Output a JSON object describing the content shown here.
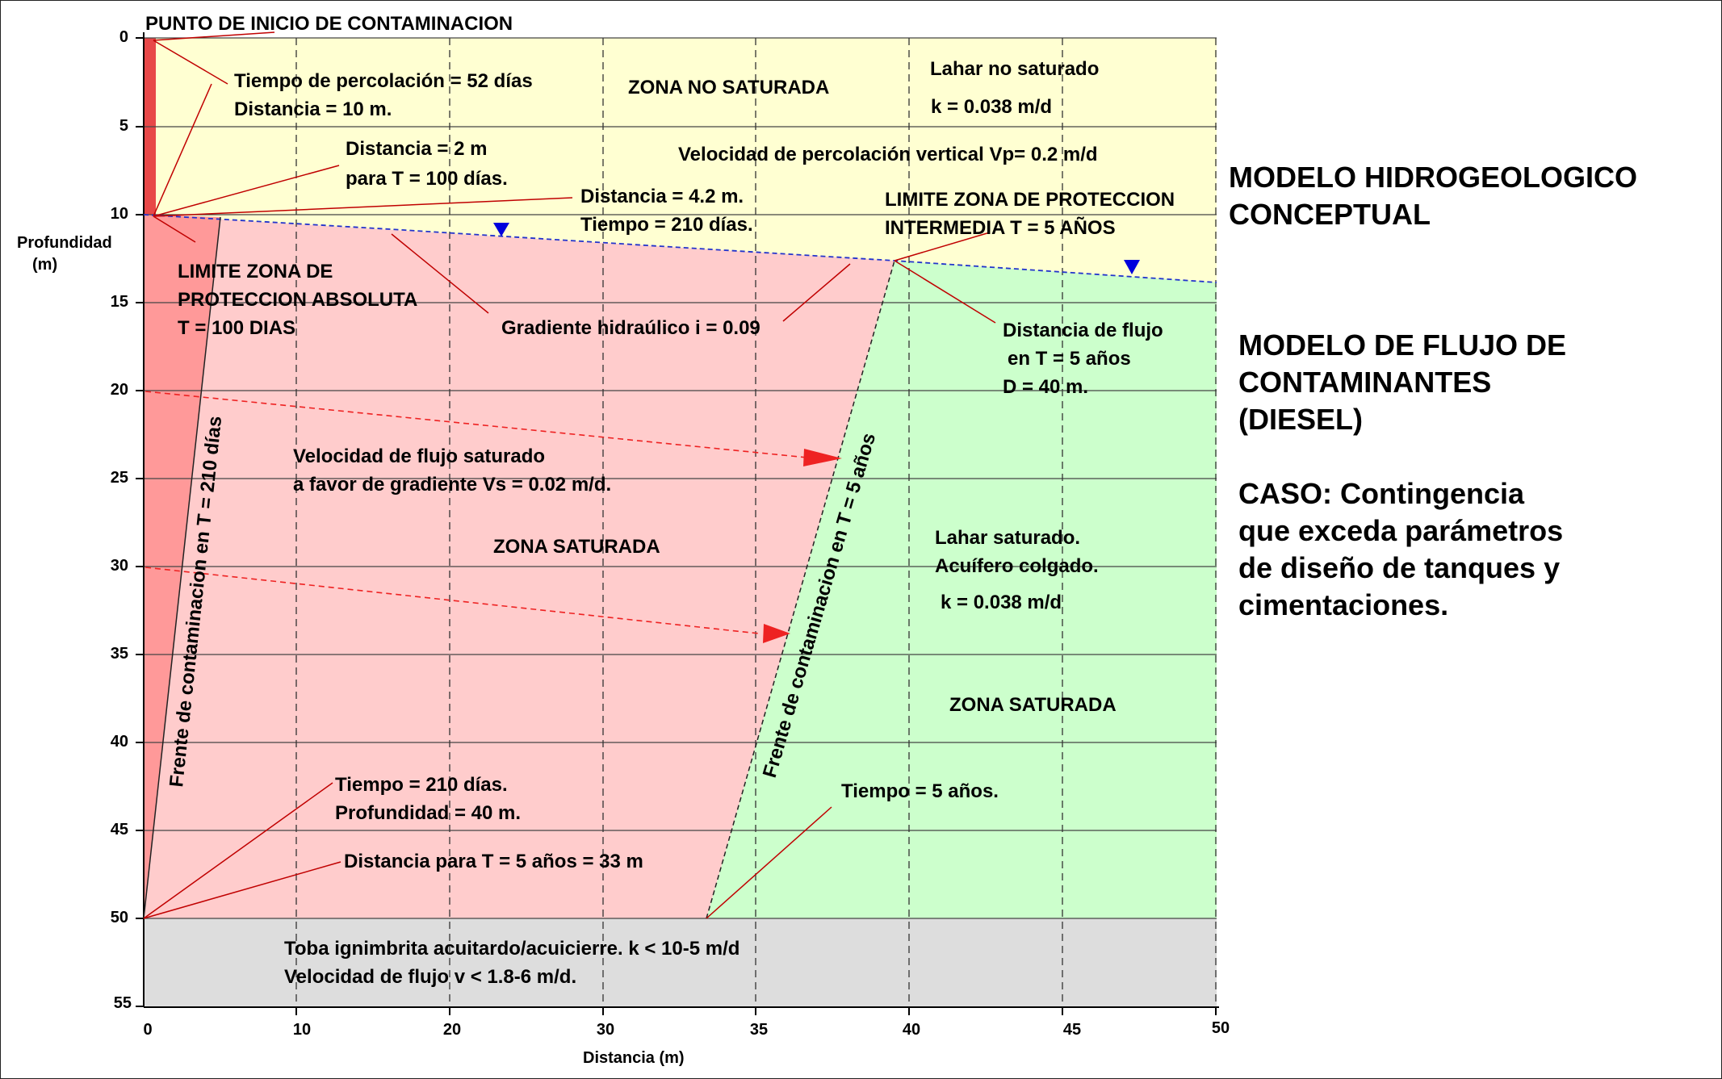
{
  "colors": {
    "unsaturated": "#ffffd2",
    "contaminated": "#ffcccc",
    "absolute_zone": "#ff9999",
    "source": "#e84848",
    "saturated_clean": "#ccffcc",
    "aquitard": "#dddddd",
    "arrow": "#ee2222",
    "water_table_marker": "#0000dd"
  },
  "axes": {
    "y_title": "Profundidad",
    "y_unit": "(m)",
    "x_title": "Distancia  (m)",
    "y_ticks": [
      "0",
      "5",
      "10",
      "15",
      "20",
      "25",
      "30",
      "35",
      "40",
      "45",
      "50",
      "55"
    ],
    "x_ticks": [
      "0",
      "10",
      "20",
      "30",
      "35",
      "40",
      "45",
      "50"
    ]
  },
  "labels": {
    "source_point": "PUNTO DE INICIO DE CONTAMINACION",
    "perc_time": "Tiempo de percolación = 52 días",
    "perc_dist": "Distancia = 10 m.",
    "zona_no_saturada": "ZONA NO SATURADA",
    "lahar_no_sat": "Lahar no saturado",
    "k_top": "k = 0.038 m/d",
    "dist_2m": "Distancia = 2 m",
    "t_100": "para T = 100 días.",
    "vp": "Velocidad de percolación vertical  Vp= 0.2 m/d",
    "dist_42": "Distancia = 4.2 m.",
    "t_210": "Tiempo = 210 días.",
    "lim_int_1": "LIMITE ZONA DE PROTECCION",
    "lim_int_2": "INTERMEDIA T = 5 AÑOS",
    "lim_abs_1": "LIMITE ZONA DE",
    "lim_abs_2": "PROTECCION ABSOLUTA",
    "lim_abs_3": "T = 100 DIAS",
    "gradiente": "Gradiente hidraúlico i = 0.09",
    "dist_flujo_1": "Distancia de flujo",
    "dist_flujo_2": "en T = 5 años",
    "dist_flujo_3": "D = 40 m.",
    "frente_210": "Frente de contaminacion en T = 210 días",
    "frente_5": "Frente de contaminacion en T = 5 años",
    "vs_1": "Velocidad de flujo saturado",
    "vs_2": "a favor de gradiente Vs = 0.02 m/d.",
    "zona_sat_1": "ZONA SATURADA",
    "lahar_sat_1": "Lahar saturado.",
    "lahar_sat_2": "Acuífero colgado.",
    "k_sat": "k = 0.038 m/d",
    "zona_sat_2": "ZONA SATURADA",
    "t210_1": "Tiempo = 210 días.",
    "t210_2": "Profundidad = 40 m.",
    "t5": "Tiempo = 5 años.",
    "dist_33": "Distancia para T = 5 años = 33 m",
    "toba_1": "Toba ignimbrita acuitardo/acuicierre. k < 10-5 m/d",
    "toba_2": "Velocidad de flujo v < 1.8-6 m/d."
  },
  "side": {
    "title_1": "MODELO HIDROGEOLOGICO",
    "title_2": "CONCEPTUAL",
    "flow_1": "MODELO DE FLUJO DE",
    "flow_2": "CONTAMINANTES",
    "flow_3": "(DIESEL)",
    "case_1": "CASO: Contingencia",
    "case_2": "que exceda parámetros",
    "case_3": "de diseño de tanques y",
    "case_4": "cimentaciones."
  }
}
